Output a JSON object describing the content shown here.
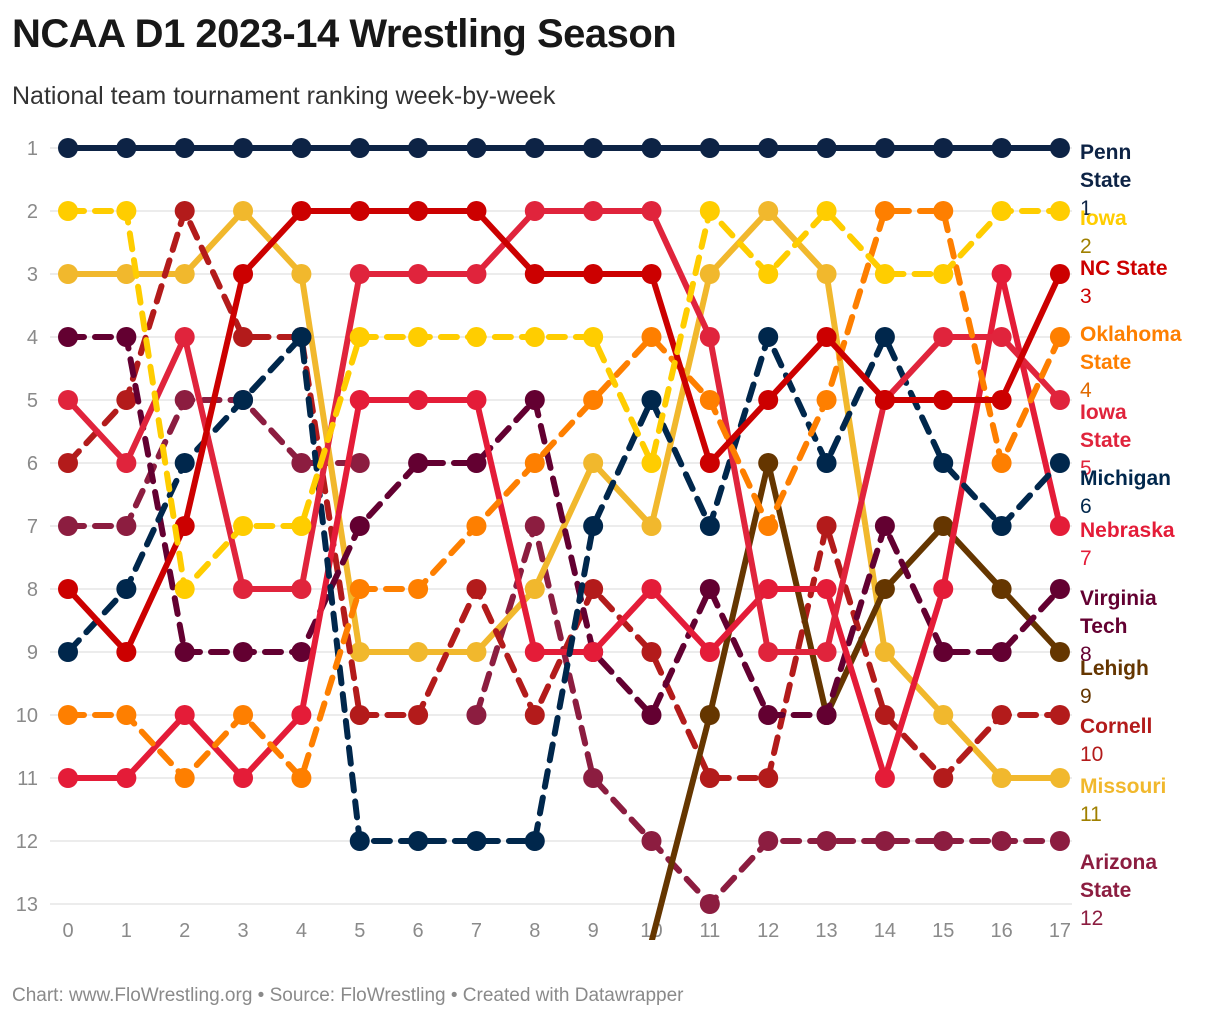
{
  "header": {
    "title": "NCAA D1 2023-14 Wrestling Season",
    "subtitle": "National team tournament ranking week-by-week"
  },
  "footer": {
    "credit": "Chart: www.FloWrestling.org • Source: FloWrestling • Created with Datawrapper"
  },
  "chart_data": {
    "type": "line",
    "title": "NCAA D1 2023-14 Wrestling Season",
    "subtitle": "National team tournament ranking week-by-week",
    "xlabel": "",
    "ylabel": "",
    "x": [
      0,
      1,
      2,
      3,
      4,
      5,
      6,
      7,
      8,
      9,
      10,
      11,
      12,
      13,
      14,
      15,
      16,
      17
    ],
    "y_ticks": [
      1,
      2,
      3,
      4,
      5,
      6,
      7,
      8,
      9,
      10,
      11,
      12,
      13
    ],
    "ylim": [
      1,
      13
    ],
    "y_inverted": true,
    "grid": true,
    "legend": "direct labels at right end",
    "series": [
      {
        "name": "Penn State",
        "color": "#0d2345",
        "rank_color": "#0d2345",
        "dashed": false,
        "final_rank": "1",
        "values": [
          1,
          1,
          1,
          1,
          1,
          1,
          1,
          1,
          1,
          1,
          1,
          1,
          1,
          1,
          1,
          1,
          1,
          1
        ]
      },
      {
        "name": "Iowa",
        "color": "#ffcd00",
        "rank_color": "#a08000",
        "dashed": true,
        "final_rank": "2",
        "values": [
          2,
          2,
          8,
          7,
          7,
          4,
          4,
          4,
          4,
          4,
          6,
          2,
          3,
          2,
          3,
          3,
          2,
          2
        ]
      },
      {
        "name": "NC State",
        "color": "#cc0000",
        "rank_color": "#cc0000",
        "dashed": false,
        "final_rank": "3",
        "values": [
          8,
          9,
          7,
          3,
          2,
          2,
          2,
          2,
          3,
          3,
          3,
          6,
          5,
          4,
          5,
          5,
          5,
          3
        ]
      },
      {
        "name": "Oklahoma State",
        "color": "#fe7f00",
        "rank_color": "#e06a00",
        "dashed": true,
        "final_rank": "4",
        "values": [
          10,
          10,
          11,
          10,
          11,
          8,
          8,
          7,
          6,
          5,
          4,
          5,
          7,
          5,
          2,
          2,
          6,
          4
        ]
      },
      {
        "name": "Iowa State",
        "color": "#e0243c",
        "rank_color": "#e0243c",
        "dashed": false,
        "final_rank": "5",
        "values": [
          5,
          6,
          4,
          8,
          8,
          3,
          3,
          3,
          2,
          2,
          2,
          4,
          9,
          9,
          5,
          4,
          4,
          5
        ]
      },
      {
        "name": "Michigan",
        "color": "#00274c",
        "rank_color": "#00274c",
        "dashed": true,
        "final_rank": "6",
        "values": [
          9,
          8,
          6,
          5,
          4,
          12,
          12,
          12,
          12,
          7,
          5,
          7,
          4,
          6,
          4,
          6,
          7,
          6
        ]
      },
      {
        "name": "Nebraska",
        "color": "#e41c38",
        "rank_color": "#e41c38",
        "dashed": false,
        "final_rank": "7",
        "values": [
          11,
          11,
          10,
          11,
          10,
          5,
          5,
          5,
          9,
          9,
          8,
          9,
          8,
          8,
          11,
          8,
          3,
          7
        ]
      },
      {
        "name": "Virginia Tech",
        "color": "#630031",
        "rank_color": "#630031",
        "dashed": true,
        "final_rank": "8",
        "values": [
          4,
          4,
          9,
          9,
          9,
          7,
          6,
          6,
          5,
          9,
          10,
          8,
          10,
          10,
          7,
          9,
          9,
          8
        ]
      },
      {
        "name": "Lehigh",
        "color": "#653600",
        "rank_color": "#653600",
        "dashed": false,
        "final_rank": "9",
        "values": [
          null,
          null,
          null,
          null,
          null,
          null,
          null,
          null,
          null,
          null,
          13.6,
          10,
          6,
          10,
          8,
          7,
          8,
          9
        ]
      },
      {
        "name": "Cornell",
        "color": "#b31b1b",
        "rank_color": "#b31b1b",
        "dashed": true,
        "final_rank": "10",
        "values": [
          6,
          5,
          2,
          4,
          4,
          10,
          10,
          8,
          10,
          8,
          9,
          11,
          11,
          7,
          10,
          11,
          10,
          10
        ]
      },
      {
        "name": "Missouri",
        "color": "#f1b82d",
        "rank_color": "#a08000",
        "dashed": false,
        "final_rank": "11",
        "values": [
          3,
          3,
          3,
          2,
          3,
          9,
          9,
          9,
          8,
          6,
          7,
          3,
          2,
          3,
          9,
          10,
          11,
          11
        ]
      },
      {
        "name": "Arizona State",
        "color": "#8c1d40",
        "rank_color": "#8c1d40",
        "dashed": true,
        "final_rank": "12",
        "values": [
          7,
          7,
          5,
          5,
          6,
          6,
          null,
          10,
          7,
          11,
          12,
          13,
          12,
          12,
          12,
          12,
          12,
          12
        ]
      }
    ]
  }
}
